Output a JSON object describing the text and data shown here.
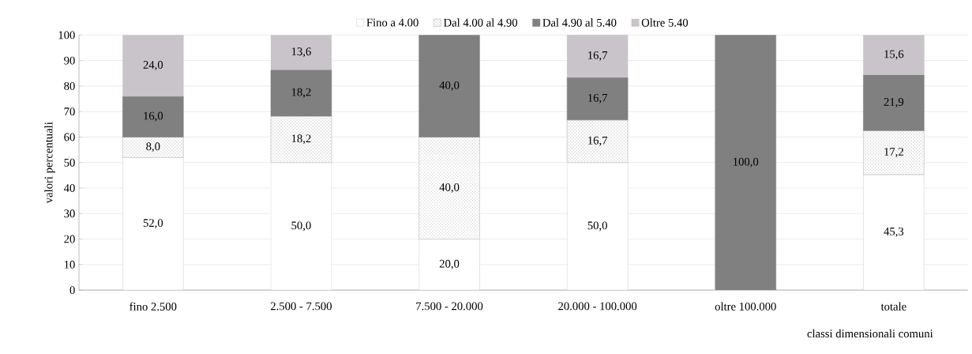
{
  "chart_data": {
    "type": "bar",
    "stacked": true,
    "ylabel": "valori percentuali",
    "xlabel": "classi dimensionali comuni",
    "categories": [
      "fino 2.500",
      "2.500 - 7.500",
      "7.500 - 20.000",
      "20.000 - 100.000",
      "oltre 100.000",
      "totale"
    ],
    "ylim": [
      0,
      100
    ],
    "yticks": [
      0,
      10,
      20,
      30,
      40,
      50,
      60,
      70,
      80,
      90,
      100
    ],
    "grid": "y",
    "legend": "top",
    "series": [
      {
        "name": "Fino a 4.00",
        "color": "#ffffff",
        "values": [
          52.0,
          50.0,
          20.0,
          50.0,
          null,
          45.3
        ],
        "value_labels": [
          "52,0",
          "50,0",
          "20,0",
          "50,0",
          null,
          "45,3"
        ]
      },
      {
        "name": "Dal 4.00 al 4.90",
        "color": "#c0c0c0",
        "values": [
          8.0,
          18.2,
          40.0,
          16.7,
          null,
          17.2
        ],
        "value_labels": [
          "8,0",
          "18,2",
          "40,0",
          "16,7",
          null,
          "17,2"
        ]
      },
      {
        "name": "Dal 4.90 al 5.40",
        "color": "#808080",
        "values": [
          16.0,
          18.2,
          40.0,
          16.7,
          100.0,
          21.9
        ],
        "value_labels": [
          "16,0",
          "18,2",
          "40,0",
          "16,7",
          "100,0",
          "21,9"
        ]
      },
      {
        "name": "Oltre 5.40",
        "color": "#c9c4c9",
        "values": [
          24.0,
          13.6,
          null,
          16.7,
          null,
          15.6
        ],
        "value_labels": [
          "24,0",
          "13,6",
          null,
          "16,7",
          null,
          "15,6"
        ]
      }
    ]
  }
}
